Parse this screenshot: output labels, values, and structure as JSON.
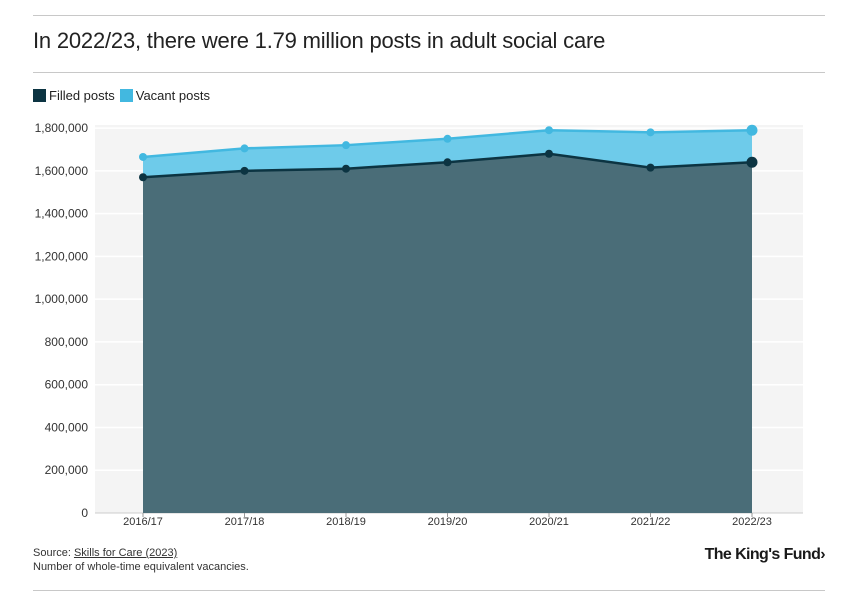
{
  "title": "In 2022/23, there were 1.79 million posts in adult social care",
  "colors": {
    "filled": "#0c3442",
    "vacant": "#42b8e0",
    "vacant_fill": "#6ecbea",
    "filled_fill": "#4a6d78",
    "plot_bg": "#f4f4f4"
  },
  "footer": {
    "source_prefix": "Source: ",
    "source_link": "Skills for Care (2023)",
    "note": "Number of whole-time equivalent vacancies."
  },
  "logo": "The King's Fund›",
  "chart_data": {
    "type": "area",
    "categories": [
      "2016/17",
      "2017/18",
      "2018/19",
      "2019/20",
      "2020/21",
      "2021/22",
      "2022/23"
    ],
    "series": [
      {
        "name": "Filled posts",
        "values": [
          1570000,
          1600000,
          1610000,
          1640000,
          1680000,
          1615000,
          1640000
        ]
      },
      {
        "name": "Vacant posts",
        "values": [
          1665000,
          1705000,
          1720000,
          1750000,
          1790000,
          1780000,
          1790000
        ]
      }
    ],
    "stacked_totals_shown": true,
    "y_ticks": [
      "0",
      "200,000",
      "400,000",
      "600,000",
      "800,000",
      "1,000,000",
      "1,200,000",
      "1,400,000",
      "1,600,000",
      "1,800,000"
    ],
    "ylim": [
      0,
      1800000
    ],
    "grid": true,
    "legend_position": "top-left"
  }
}
